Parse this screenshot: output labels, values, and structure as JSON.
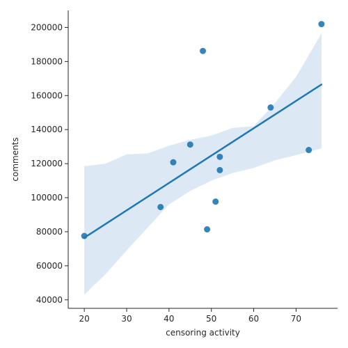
{
  "chart_data": {
    "type": "scatter",
    "xlabel": "censoring activity",
    "ylabel": "comments",
    "xlim": [
      16.2,
      79.8
    ],
    "ylim": [
      35000,
      210000
    ],
    "xticks": [
      20,
      30,
      40,
      50,
      60,
      70
    ],
    "yticks": [
      40000,
      60000,
      80000,
      100000,
      120000,
      140000,
      160000,
      180000,
      200000
    ],
    "grid": false,
    "points": [
      {
        "x": 20,
        "y": 77500
      },
      {
        "x": 38,
        "y": 94500
      },
      {
        "x": 41,
        "y": 120800
      },
      {
        "x": 45,
        "y": 131200
      },
      {
        "x": 48,
        "y": 186200
      },
      {
        "x": 49,
        "y": 81400
      },
      {
        "x": 51,
        "y": 97700
      },
      {
        "x": 52,
        "y": 124000
      },
      {
        "x": 52,
        "y": 116200
      },
      {
        "x": 64,
        "y": 153000
      },
      {
        "x": 73,
        "y": 128000
      },
      {
        "x": 76,
        "y": 202000
      }
    ],
    "regression": {
      "x": [
        20,
        76
      ],
      "y": [
        76500,
        166500
      ]
    },
    "confidence_band": {
      "x": [
        20,
        25,
        30,
        35,
        40,
        45,
        50,
        55,
        60,
        65,
        70,
        76
      ],
      "upper": [
        118500,
        120000,
        125500,
        126000,
        130500,
        134000,
        136500,
        141000,
        142000,
        155500,
        171000,
        196500
      ],
      "lower": [
        43000,
        55000,
        69000,
        82500,
        96000,
        104000,
        110000,
        114500,
        117500,
        122000,
        125000,
        129000
      ]
    },
    "colors": {
      "points": "#1f77b4",
      "line": "#1f77b4",
      "band": "#dce8f4"
    }
  }
}
